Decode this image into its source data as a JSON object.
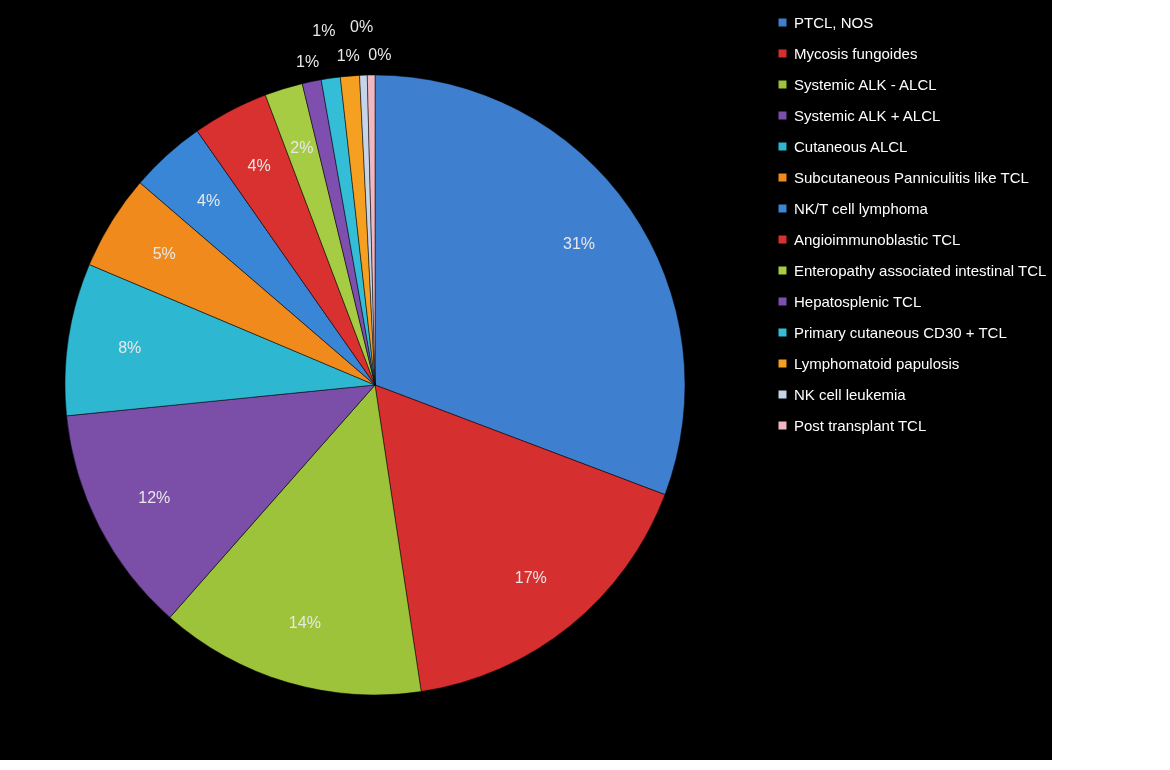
{
  "chart_data": {
    "type": "pie",
    "categories": [
      "PTCL, NOS",
      "Mycosis fungoides",
      "Systemic ALK - ALCL",
      "Systemic ALK + ALCL",
      "Cutaneous ALCL",
      "Subcutaneous Panniculitis like TCL",
      "NK/T cell lymphoma",
      "Angioimmunoblastic TCL",
      "Enteropathy associated intestinal TCL",
      "Hepatosplenic TCL",
      "Primary cutaneous CD30 + TCL",
      "Lymphomatoid papulosis",
      "NK cell leukemia",
      "Post transplant TCL"
    ],
    "values": [
      31,
      17,
      14,
      12,
      8,
      5,
      4,
      4,
      2,
      1,
      1,
      1,
      0.4,
      0.4
    ],
    "value_labels": [
      "31%",
      "17%",
      "14%",
      "12%",
      "8%",
      "5%",
      "4%",
      "4%",
      "2%",
      "1%",
      "1%",
      "1%",
      "0%",
      "0%"
    ],
    "colors": [
      "#3f7fd0",
      "#d62f2f",
      "#9cc33a",
      "#7b4ea8",
      "#2eb7d0",
      "#f08a1c",
      "#3a86d6",
      "#d93030",
      "#a6cc44",
      "#7e4fae",
      "#33bdd6",
      "#f5a020",
      "#c6d4ea",
      "#f0b8c0"
    ],
    "legend": "right"
  }
}
